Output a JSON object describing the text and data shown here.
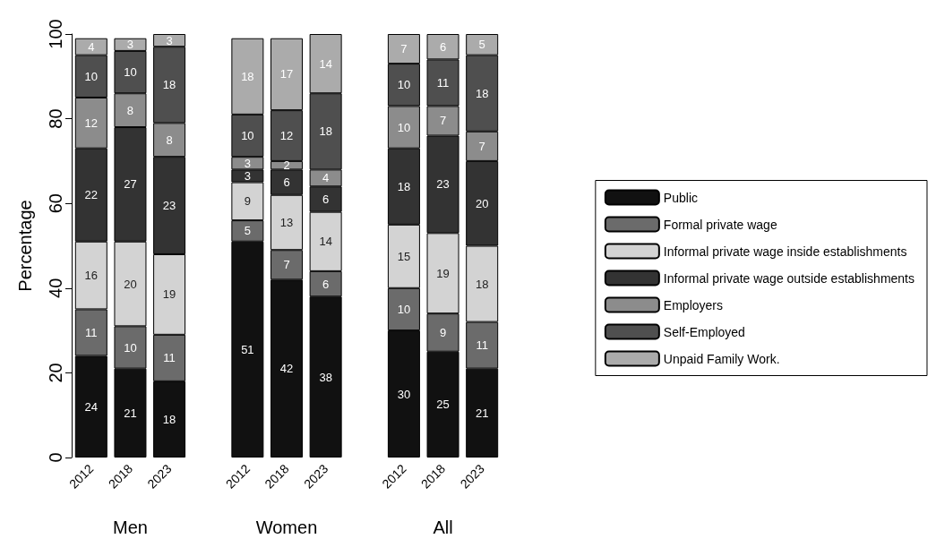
{
  "chart_data": {
    "type": "bar",
    "stacked": true,
    "ylabel": "Percentage",
    "categories": [
      "2012",
      "2018",
      "2023",
      null,
      "2012",
      "2018",
      "2023",
      null,
      "2012",
      "2018",
      "2023"
    ],
    "series": [
      {
        "name": "Public",
        "color": "#111111",
        "values": [
          24,
          21,
          18,
          null,
          51,
          42,
          38,
          null,
          30,
          25,
          21
        ]
      },
      {
        "name": "Formal private wage",
        "color": "#6b6b6b",
        "values": [
          11,
          10,
          11,
          null,
          5,
          7,
          6,
          null,
          10,
          9,
          11
        ]
      },
      {
        "name": "Informal private wage inside establishments",
        "color": "#d3d3d3",
        "values": [
          16,
          20,
          19,
          null,
          9,
          13,
          14,
          null,
          15,
          19,
          18
        ]
      },
      {
        "name": "Informal private wage outside establishments",
        "color": "#333333",
        "values": [
          22,
          27,
          23,
          null,
          3,
          6,
          6,
          null,
          18,
          23,
          20
        ]
      },
      {
        "name": "Employers",
        "color": "#8c8c8c",
        "values": [
          12,
          8,
          8,
          null,
          3,
          2,
          4,
          null,
          10,
          7,
          7
        ]
      },
      {
        "name": "Self-Employed",
        "color": "#4f4f4f",
        "values": [
          10,
          10,
          18,
          null,
          10,
          12,
          18,
          null,
          10,
          11,
          18
        ]
      },
      {
        "name": "Unpaid Family Work.",
        "color": "#ababab",
        "values": [
          4,
          3,
          3,
          null,
          18,
          17,
          14,
          null,
          7,
          6,
          5
        ]
      }
    ],
    "ylim": [
      0,
      100
    ],
    "yticks": [
      0,
      20,
      40,
      60,
      80,
      100
    ],
    "grid": false,
    "legend": "right",
    "data_labels": true,
    "annotations": [
      "Men",
      "Women",
      "All"
    ]
  }
}
